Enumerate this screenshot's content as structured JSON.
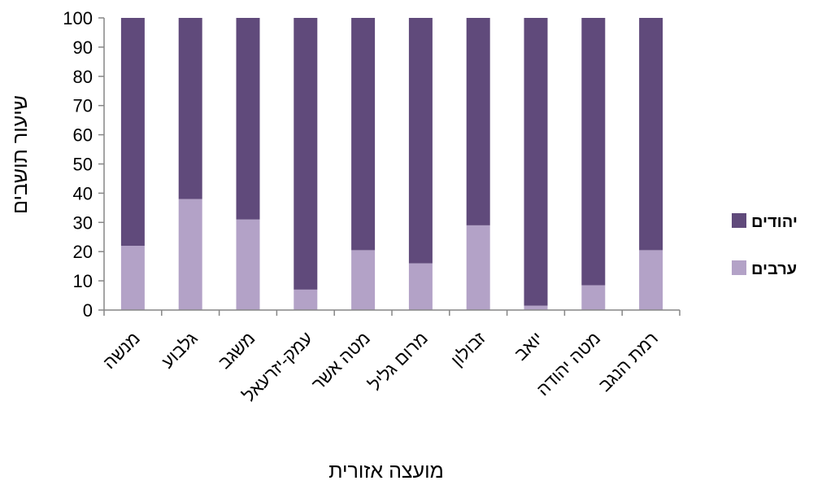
{
  "chart_data": {
    "type": "bar",
    "stacked": true,
    "categories": [
      "מנשה",
      "גלבוע",
      "משגב",
      "עמק-יזרעאל",
      "מטה אשר",
      "מרום גליל",
      "זבולון",
      "יואב",
      "מטה יהודה",
      "רמת הנגב"
    ],
    "series": [
      {
        "name": "ערבים",
        "color": "#b3a2c7",
        "values": [
          22,
          38,
          31,
          7,
          20.5,
          16,
          29,
          1.5,
          8.5,
          20.5
        ]
      },
      {
        "name": "יהודים",
        "color": "#604a7b",
        "values": [
          78,
          62,
          69,
          93,
          79.5,
          84,
          71,
          98.5,
          91.5,
          79.5
        ]
      }
    ],
    "ylim": [
      0,
      100
    ],
    "yticks": [
      0,
      10,
      20,
      30,
      40,
      50,
      60,
      70,
      80,
      90,
      100
    ],
    "xlabel": "מועצה אזורית",
    "ylabel": "שיעור תושבים",
    "legend": {
      "position": "right"
    },
    "grid": false
  }
}
